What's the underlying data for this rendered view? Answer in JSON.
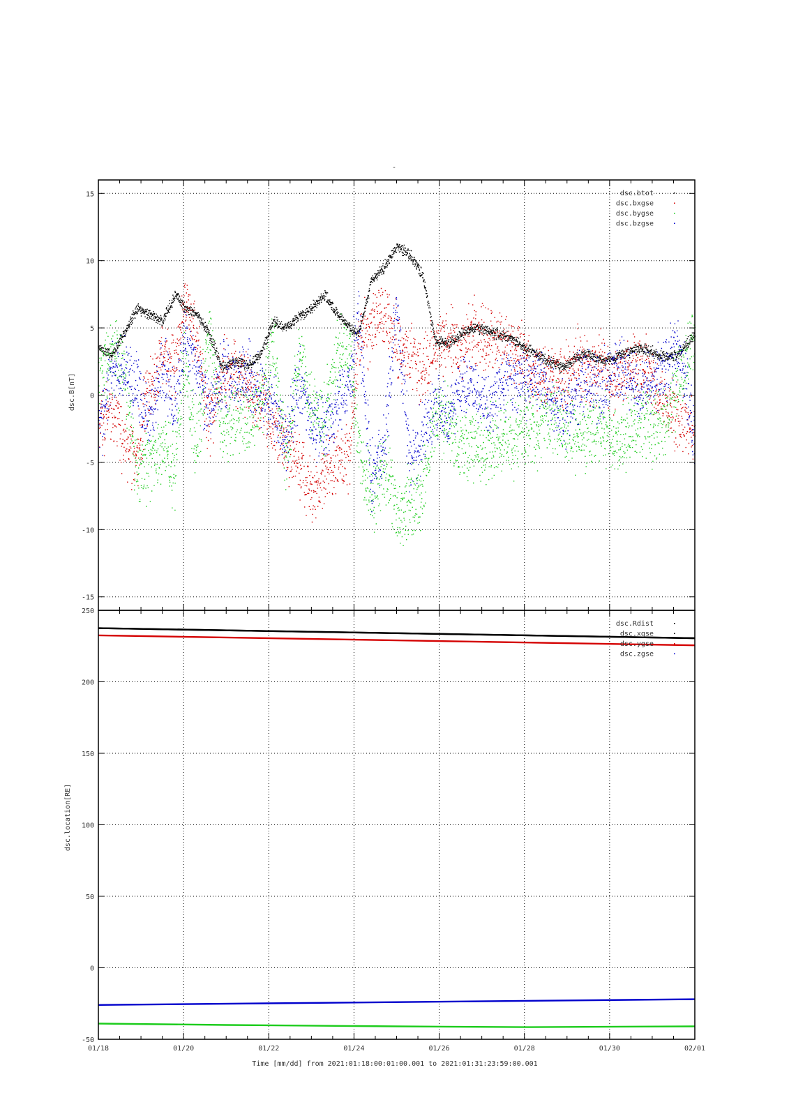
{
  "figure": {
    "title": "-",
    "colors": {
      "black": "#000000",
      "red": "#d40000",
      "green": "#1ccc1c",
      "blue": "#0000cc",
      "grid": "#000000"
    },
    "x_axis": {
      "label": "Time [mm/dd]  from 2021:01:18:00:01:00.001  to  2021:01:31:23:59:00.001",
      "tick_labels": [
        "01/18",
        "01/20",
        "01/22",
        "01/24",
        "01/26",
        "01/28",
        "01/30",
        "02/01"
      ]
    }
  },
  "chart_data": [
    {
      "type": "scatter",
      "title": "",
      "ylabel": "dsc.B[nT]",
      "xlabel": "",
      "xlim": [
        0,
        14
      ],
      "ylim": [
        -16,
        16
      ],
      "x_unit": "days since 01/18",
      "yticks": [
        -15,
        -10,
        -5,
        0,
        5,
        10,
        15
      ],
      "grid": true,
      "legend_placement": "top-right",
      "series": [
        {
          "name": "dsc.btot",
          "color": "#000000",
          "x": [
            0,
            0.3,
            0.6,
            0.9,
            1.2,
            1.5,
            1.8,
            2.0,
            2.3,
            2.6,
            2.9,
            3.2,
            3.5,
            3.8,
            4.1,
            4.4,
            4.7,
            5.0,
            5.3,
            5.6,
            5.9,
            6.1,
            6.4,
            6.7,
            7.0,
            7.3,
            7.6,
            7.9,
            8.2,
            8.5,
            8.8,
            9.1,
            9.4,
            9.7,
            10.0,
            10.3,
            10.6,
            10.9,
            11.2,
            11.5,
            11.8,
            12.1,
            12.4,
            12.7,
            13.0,
            13.3,
            13.6,
            14.0
          ],
          "y": [
            3.5,
            3.0,
            4.5,
            6.5,
            6.0,
            5.5,
            7.5,
            6.5,
            6.0,
            4.5,
            2.0,
            2.5,
            2.2,
            3.0,
            5.5,
            5.0,
            5.8,
            6.5,
            7.5,
            6.0,
            5.0,
            4.5,
            8.5,
            9.5,
            11.0,
            10.5,
            9.0,
            4.0,
            3.8,
            4.5,
            5.0,
            4.8,
            4.5,
            4.2,
            3.5,
            3.0,
            2.5,
            2.0,
            2.8,
            3.0,
            2.5,
            2.8,
            3.2,
            3.5,
            3.2,
            2.8,
            3.0,
            4.5
          ]
        },
        {
          "name": "dsc.bxgse",
          "color": "#d40000",
          "x": [
            0,
            0.3,
            0.6,
            0.9,
            1.2,
            1.5,
            1.8,
            2.0,
            2.3,
            2.6,
            2.9,
            3.2,
            3.5,
            3.8,
            4.1,
            4.4,
            4.7,
            5.0,
            5.3,
            5.6,
            5.9,
            6.1,
            6.4,
            6.7,
            7.0,
            7.3,
            7.6,
            7.9,
            8.2,
            8.5,
            8.8,
            9.1,
            9.4,
            9.7,
            10.0,
            10.3,
            10.6,
            10.9,
            11.2,
            11.5,
            11.8,
            12.1,
            12.4,
            12.7,
            13.0,
            13.3,
            13.6,
            14.0
          ],
          "y": [
            -2.5,
            -1.0,
            -3.5,
            -4.5,
            1.0,
            3.0,
            2.0,
            7.0,
            4.0,
            -2.0,
            1.5,
            2.0,
            0.5,
            -1.0,
            -2.0,
            -4.0,
            -5.0,
            -7.5,
            -6.0,
            -5.0,
            -4.5,
            4.0,
            5.0,
            6.5,
            4.0,
            3.0,
            2.0,
            3.5,
            4.0,
            3.0,
            5.0,
            4.0,
            4.0,
            3.5,
            2.5,
            1.5,
            2.0,
            1.0,
            2.5,
            1.5,
            2.5,
            1.0,
            2.0,
            2.5,
            1.0,
            -1.0,
            -1.5,
            -3.0
          ]
        },
        {
          "name": "dsc.bygse",
          "color": "#1ccc1c",
          "x": [
            0,
            0.3,
            0.6,
            0.9,
            1.2,
            1.5,
            1.8,
            2.0,
            2.3,
            2.6,
            2.9,
            3.2,
            3.5,
            3.8,
            4.1,
            4.4,
            4.7,
            5.0,
            5.3,
            5.6,
            5.9,
            6.1,
            6.4,
            6.7,
            7.0,
            7.3,
            7.6,
            7.9,
            8.2,
            8.5,
            8.8,
            9.1,
            9.4,
            9.7,
            10.0,
            10.3,
            10.6,
            10.9,
            11.2,
            11.5,
            11.8,
            12.1,
            12.4,
            12.7,
            13.0,
            13.3,
            13.6,
            14.0
          ],
          "y": [
            1.5,
            3.0,
            2.0,
            -6.0,
            -5.0,
            -4.0,
            -5.5,
            3.0,
            -4.0,
            5.0,
            -2.5,
            -1.5,
            -2.0,
            -1.0,
            4.0,
            -5.0,
            3.0,
            -1.0,
            -2.0,
            3.0,
            3.5,
            -4.0,
            -8.0,
            -5.0,
            -9.0,
            -8.0,
            -7.0,
            -1.5,
            -2.0,
            -4.0,
            -3.5,
            -4.0,
            -3.0,
            -3.5,
            -2.0,
            -2.5,
            -1.5,
            -2.5,
            -3.0,
            -3.0,
            -2.5,
            -3.5,
            -3.0,
            -2.0,
            -2.5,
            -2.0,
            1.0,
            4.5
          ]
        },
        {
          "name": "dsc.bzgse",
          "color": "#0000cc",
          "x": [
            0,
            0.3,
            0.6,
            0.9,
            1.2,
            1.5,
            1.8,
            2.0,
            2.3,
            2.6,
            2.9,
            3.2,
            3.5,
            3.8,
            4.1,
            4.4,
            4.7,
            5.0,
            5.3,
            5.6,
            5.9,
            6.1,
            6.4,
            6.7,
            7.0,
            7.3,
            7.6,
            7.9,
            8.2,
            8.5,
            8.8,
            9.1,
            9.4,
            9.7,
            10.0,
            10.3,
            10.6,
            10.9,
            11.2,
            11.5,
            11.8,
            12.1,
            12.4,
            12.7,
            13.0,
            13.3,
            13.6,
            14.0
          ],
          "y": [
            -3.0,
            1.5,
            2.0,
            0.5,
            -2.0,
            2.0,
            -1.0,
            4.0,
            2.0,
            -1.0,
            1.5,
            1.0,
            1.5,
            0.0,
            -1.0,
            -3.0,
            1.0,
            -2.0,
            -3.0,
            -1.0,
            1.0,
            6.0,
            -6.0,
            -4.0,
            7.0,
            -5.0,
            -3.0,
            -1.0,
            -2.0,
            1.0,
            0.0,
            -1.0,
            0.5,
            1.0,
            1.0,
            1.5,
            0.0,
            -1.5,
            0.5,
            1.0,
            0.5,
            2.0,
            1.5,
            0.5,
            1.0,
            2.0,
            4.0,
            -3.5
          ]
        }
      ]
    },
    {
      "type": "line",
      "title": "",
      "ylabel": "dsc.location[RE]",
      "xlabel": "",
      "xlim": [
        0,
        14
      ],
      "ylim": [
        -50,
        250
      ],
      "x_unit": "days since 01/18",
      "yticks": [
        -50,
        0,
        50,
        100,
        150,
        200,
        250
      ],
      "grid": true,
      "legend_placement": "top-right",
      "series": [
        {
          "name": "dsc.Rdist",
          "color": "#000000",
          "x": [
            0,
            14
          ],
          "y": [
            237.5,
            230.5
          ]
        },
        {
          "name": "dsc.xgse",
          "color": "#000000",
          "x": [
            0,
            14
          ],
          "y": [
            237.5,
            230.5
          ]
        },
        {
          "name": "dsc.ygse",
          "color": "#d40000",
          "x": [
            0,
            14
          ],
          "y": [
            232.5,
            225.5
          ]
        },
        {
          "name": "dsc.zgse",
          "color": "#0000cc",
          "x": [
            0,
            14
          ],
          "y": [
            -26,
            -22
          ]
        },
        {
          "name": "",
          "color": "#1ccc1c",
          "x": [
            0,
            3,
            7,
            10,
            14
          ],
          "y": [
            -39,
            -40,
            -41,
            -41.5,
            -41
          ]
        }
      ]
    }
  ]
}
